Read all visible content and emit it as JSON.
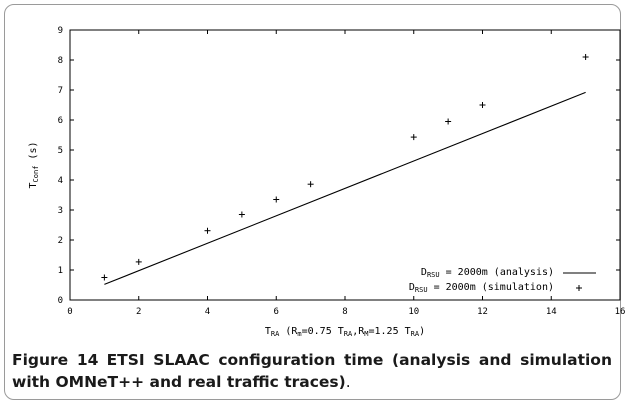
{
  "figure": {
    "label": "Figure 14",
    "caption_bold": "ETSI SLAAC configuration time (analysis and simulation with OMNeT++ and real traffic traces)",
    "caption_tail": "."
  },
  "chart_data": {
    "type": "scatter",
    "title": "",
    "xlabel": "T_RA (R_m=0.75 T_RA, R_M=1.25 T_RA)",
    "xlabel_parts": {
      "T": "T",
      "RA": "RA",
      "open": " (R",
      "m": "m",
      "eq1": "=0.75 T",
      "RA2": "RA",
      "comma": ",R",
      "M": "M",
      "eq2": "=1.25 T",
      "RA3": "RA",
      "close": ")"
    },
    "ylabel": "T_Conf (s)",
    "ylabel_parts": {
      "T": "T",
      "Conf": "Conf",
      "unit": " (s)"
    },
    "xlim": [
      0,
      16
    ],
    "ylim": [
      0,
      9
    ],
    "xticks": [
      0,
      2,
      4,
      6,
      8,
      10,
      12,
      14,
      16
    ],
    "yticks": [
      0,
      1,
      2,
      3,
      4,
      5,
      6,
      7,
      8,
      9
    ],
    "grid": false,
    "legend_position": "bottom-right",
    "series": [
      {
        "name": "D_RSU = 2000m (analysis)",
        "legend_parts": {
          "D": "D",
          "sub": "RSU",
          "rest": " = 2000m (analysis)"
        },
        "style": "line",
        "color": "#000000",
        "x": [
          1,
          15
        ],
        "y": [
          0.52,
          6.92
        ]
      },
      {
        "name": "D_RSU = 2000m (simulation)",
        "legend_parts": {
          "D": "D",
          "sub": "RSU",
          "rest": " = 2000m (simulation)"
        },
        "style": "plus-marker",
        "color": "#000000",
        "x": [
          1,
          2,
          4,
          5,
          6,
          7,
          10,
          11,
          12,
          15
        ],
        "y": [
          0.75,
          1.27,
          2.31,
          2.85,
          3.35,
          3.86,
          5.43,
          5.95,
          6.5,
          8.1
        ]
      }
    ]
  }
}
